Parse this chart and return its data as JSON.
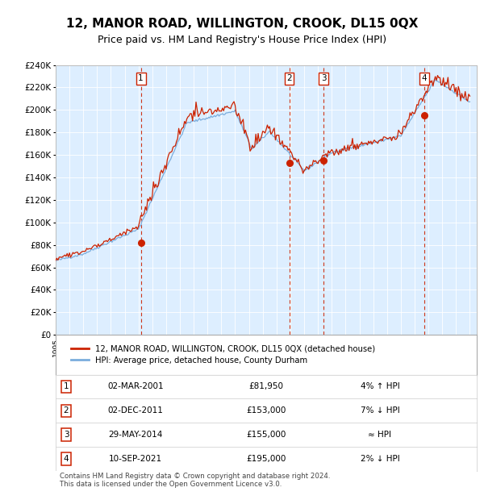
{
  "title": "12, MANOR ROAD, WILLINGTON, CROOK, DL15 0QX",
  "subtitle": "Price paid vs. HM Land Registry's House Price Index (HPI)",
  "plot_bg_color": "#ddeeff",
  "ylim": [
    0,
    240000
  ],
  "yticks": [
    0,
    20000,
    40000,
    60000,
    80000,
    100000,
    120000,
    140000,
    160000,
    180000,
    200000,
    220000,
    240000
  ],
  "sale_year_nums": [
    2001.17,
    2011.92,
    2014.41,
    2021.69
  ],
  "sale_prices": [
    81950,
    153000,
    155000,
    195000
  ],
  "sale_labels": [
    "1",
    "2",
    "3",
    "4"
  ],
  "legend_entries": [
    "12, MANOR ROAD, WILLINGTON, CROOK, DL15 0QX (detached house)",
    "HPI: Average price, detached house, County Durham"
  ],
  "table_rows": [
    [
      "1",
      "02-MAR-2001",
      "£81,950",
      "4% ↑ HPI"
    ],
    [
      "2",
      "02-DEC-2011",
      "£153,000",
      "7% ↓ HPI"
    ],
    [
      "3",
      "29-MAY-2014",
      "£155,000",
      "≈ HPI"
    ],
    [
      "4",
      "10-SEP-2021",
      "£195,000",
      "2% ↓ HPI"
    ]
  ],
  "footer": "Contains HM Land Registry data © Crown copyright and database right 2024.\nThis data is licensed under the Open Government Licence v3.0.",
  "hpi_color": "#7aaddd",
  "price_color": "#cc2200",
  "dashed_line_color": "#cc2200",
  "marker_color": "#cc2200",
  "title_fontsize": 11,
  "subtitle_fontsize": 9
}
